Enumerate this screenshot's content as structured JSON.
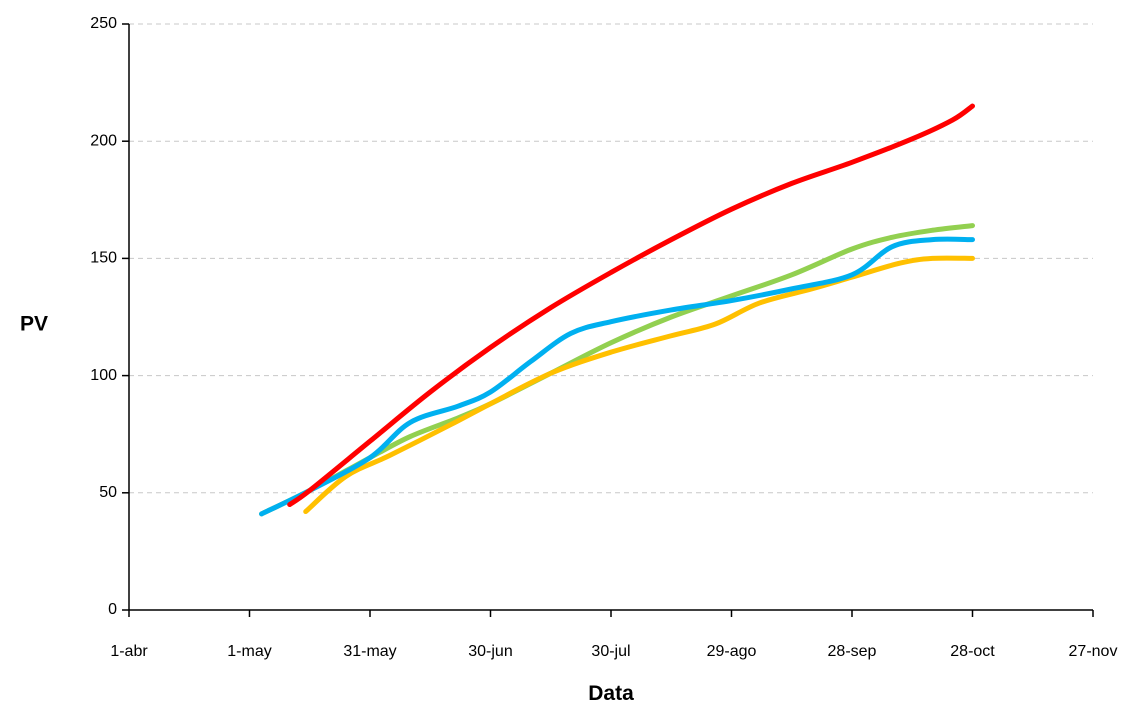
{
  "chart_data": {
    "type": "line",
    "title": "",
    "xlabel": "Data",
    "ylabel": "PV",
    "x_tick_labels": [
      "1-abr",
      "1-may",
      "31-may",
      "30-jun",
      "30-jul",
      "29-ago",
      "28-sep",
      "28-oct",
      "27-nov"
    ],
    "x_ticks": [
      "2000-04-01",
      "2000-05-01",
      "2000-05-31",
      "2000-06-30",
      "2000-07-30",
      "2000-08-29",
      "2000-09-28",
      "2000-10-28",
      "2000-11-27"
    ],
    "xlim": [
      "2000-04-01",
      "2000-11-27"
    ],
    "y_ticks": [
      0,
      50,
      100,
      150,
      200,
      250
    ],
    "ylim": [
      0,
      250
    ],
    "grid": "horizontal dashed",
    "legend": "none",
    "series": [
      {
        "color": "#ff0000",
        "points": [
          [
            "2000-05-11",
            45
          ],
          [
            "2000-05-16",
            51
          ],
          [
            "2000-05-31",
            72
          ],
          [
            "2000-06-15",
            93
          ],
          [
            "2000-06-30",
            112
          ],
          [
            "2000-07-15",
            129
          ],
          [
            "2000-07-30",
            144
          ],
          [
            "2000-08-14",
            158
          ],
          [
            "2000-08-29",
            171
          ],
          [
            "2000-09-13",
            182
          ],
          [
            "2000-09-28",
            191
          ],
          [
            "2000-10-13",
            201
          ],
          [
            "2000-10-23",
            209
          ],
          [
            "2000-10-28",
            215
          ]
        ]
      },
      {
        "color": "#00b0f0",
        "points": [
          [
            "2000-05-04",
            41
          ],
          [
            "2000-05-16",
            51
          ],
          [
            "2000-05-31",
            65
          ],
          [
            "2000-06-10",
            80
          ],
          [
            "2000-06-22",
            87
          ],
          [
            "2000-06-30",
            93
          ],
          [
            "2000-07-10",
            106
          ],
          [
            "2000-07-20",
            118
          ],
          [
            "2000-07-30",
            123
          ],
          [
            "2000-08-14",
            128
          ],
          [
            "2000-08-29",
            132
          ],
          [
            "2000-09-13",
            137
          ],
          [
            "2000-09-28",
            143
          ],
          [
            "2000-10-08",
            155
          ],
          [
            "2000-10-18",
            158
          ],
          [
            "2000-10-28",
            158
          ]
        ]
      },
      {
        "color": "#ffc000",
        "points": [
          [
            "2000-05-15",
            42
          ],
          [
            "2000-05-25",
            57
          ],
          [
            "2000-06-05",
            66
          ],
          [
            "2000-06-20",
            79
          ],
          [
            "2000-06-30",
            88
          ],
          [
            "2000-07-15",
            101
          ],
          [
            "2000-07-30",
            110
          ],
          [
            "2000-08-14",
            117
          ],
          [
            "2000-08-25",
            122
          ],
          [
            "2000-09-05",
            131
          ],
          [
            "2000-09-18",
            137
          ],
          [
            "2000-09-28",
            142
          ],
          [
            "2000-10-10",
            148
          ],
          [
            "2000-10-18",
            150
          ],
          [
            "2000-10-28",
            150
          ]
        ]
      },
      {
        "color": "#92d050",
        "points": [
          [
            "2000-05-04",
            41
          ],
          [
            "2000-05-16",
            51
          ],
          [
            "2000-05-31",
            65
          ],
          [
            "2000-06-10",
            74
          ],
          [
            "2000-06-22",
            82
          ],
          [
            "2000-06-30",
            88
          ],
          [
            "2000-07-15",
            101
          ],
          [
            "2000-07-30",
            114
          ],
          [
            "2000-08-14",
            125
          ],
          [
            "2000-08-29",
            134
          ],
          [
            "2000-09-13",
            143
          ],
          [
            "2000-09-28",
            154
          ],
          [
            "2000-10-08",
            159
          ],
          [
            "2000-10-18",
            162
          ],
          [
            "2000-10-28",
            164
          ]
        ]
      }
    ]
  }
}
